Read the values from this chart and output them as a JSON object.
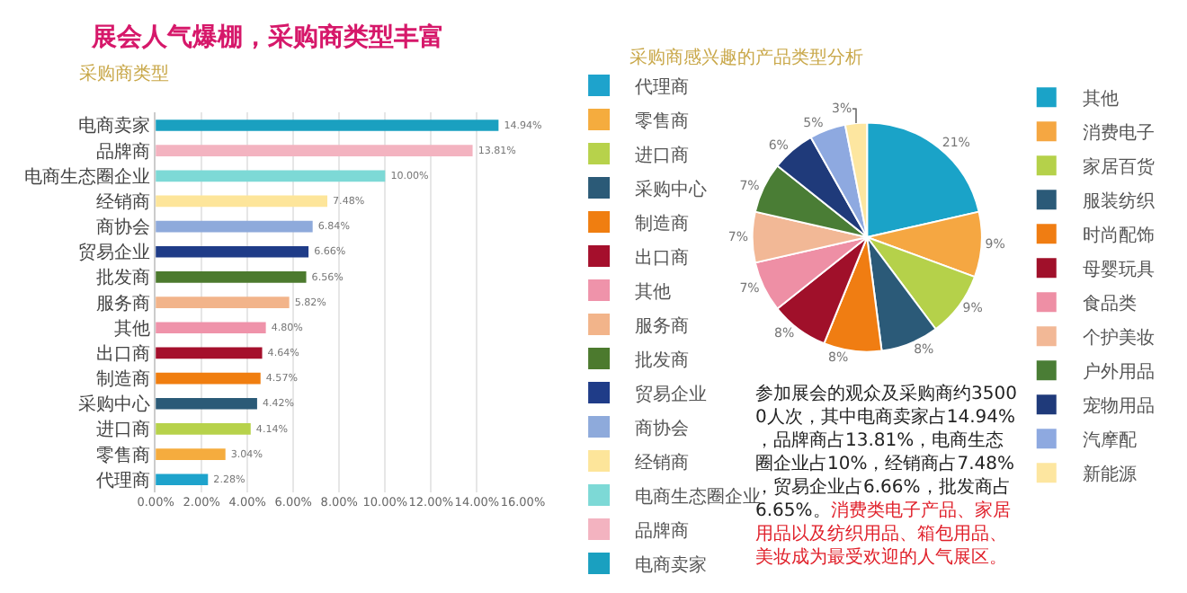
{
  "chart_data": [
    {
      "type": "bar",
      "orientation": "horizontal",
      "title": "采购商类型",
      "categories": [
        "电商卖家",
        "品牌商",
        "电商生态圈企业",
        "经销商",
        "商协会",
        "贸易企业",
        "批发商",
        "服务商",
        "其他",
        "出口商",
        "制造商",
        "采购中心",
        "进口商",
        "零售商",
        "代理商"
      ],
      "series": [
        {
          "name": "电商卖家",
          "color": "#1aa0c0",
          "values": [
            14.94,
            null,
            null,
            null,
            null,
            null,
            null,
            null,
            null,
            null,
            null,
            null,
            null,
            null,
            null
          ],
          "value_labels": [
            "14.94%",
            null,
            null,
            null,
            null,
            null,
            null,
            null,
            null,
            null,
            null,
            null,
            null,
            null,
            null
          ]
        },
        {
          "name": "品牌商",
          "color": "#f3b3c0",
          "values": [
            null,
            13.81,
            null,
            null,
            null,
            null,
            null,
            null,
            null,
            null,
            null,
            null,
            null,
            null,
            null
          ],
          "value_labels": [
            null,
            "13.81%",
            null,
            null,
            null,
            null,
            null,
            null,
            null,
            null,
            null,
            null,
            null,
            null,
            null
          ]
        },
        {
          "name": "电商生态圈企业",
          "color": "#7dd9d6",
          "values": [
            null,
            null,
            10.0,
            null,
            null,
            null,
            null,
            null,
            null,
            null,
            null,
            null,
            null,
            null,
            null
          ],
          "value_labels": [
            null,
            null,
            "10.00%",
            null,
            null,
            null,
            null,
            null,
            null,
            null,
            null,
            null,
            null,
            null,
            null
          ]
        },
        {
          "name": "经销商",
          "color": "#fde59a",
          "values": [
            null,
            null,
            null,
            7.48,
            null,
            null,
            null,
            null,
            null,
            null,
            null,
            null,
            null,
            null,
            null
          ],
          "value_labels": [
            null,
            null,
            null,
            "7.48%",
            null,
            null,
            null,
            null,
            null,
            null,
            null,
            null,
            null,
            null,
            null
          ]
        },
        {
          "name": "商协会",
          "color": "#8eaadb",
          "values": [
            null,
            null,
            null,
            null,
            6.84,
            null,
            null,
            null,
            null,
            null,
            null,
            null,
            null,
            null,
            null
          ],
          "value_labels": [
            null,
            null,
            null,
            null,
            "6.84%",
            null,
            null,
            null,
            null,
            null,
            null,
            null,
            null,
            null,
            null
          ]
        },
        {
          "name": "贸易企业",
          "color": "#1f3c88",
          "values": [
            null,
            null,
            null,
            null,
            null,
            6.66,
            null,
            null,
            null,
            null,
            null,
            null,
            null,
            null,
            null
          ],
          "value_labels": [
            null,
            null,
            null,
            null,
            null,
            "6.66%",
            null,
            null,
            null,
            null,
            null,
            null,
            null,
            null,
            null
          ]
        },
        {
          "name": "批发商",
          "color": "#4c7a2e",
          "values": [
            null,
            null,
            null,
            null,
            null,
            null,
            6.56,
            null,
            null,
            null,
            null,
            null,
            null,
            null,
            null
          ],
          "value_labels": [
            null,
            null,
            null,
            null,
            null,
            null,
            "6.56%",
            null,
            null,
            null,
            null,
            null,
            null,
            null,
            null
          ]
        },
        {
          "name": "服务商",
          "color": "#f2b48a",
          "values": [
            null,
            null,
            null,
            null,
            null,
            null,
            null,
            5.82,
            null,
            null,
            null,
            null,
            null,
            null,
            null
          ],
          "value_labels": [
            null,
            null,
            null,
            null,
            null,
            null,
            null,
            "5.82%",
            null,
            null,
            null,
            null,
            null,
            null,
            null
          ]
        },
        {
          "name": "其他",
          "color": "#ef93aa",
          "values": [
            null,
            null,
            null,
            null,
            null,
            null,
            null,
            null,
            4.8,
            null,
            null,
            null,
            null,
            null,
            null
          ],
          "value_labels": [
            null,
            null,
            null,
            null,
            null,
            null,
            null,
            null,
            "4.80%",
            null,
            null,
            null,
            null,
            null,
            null
          ]
        },
        {
          "name": "出口商",
          "color": "#a50f2c",
          "values": [
            null,
            null,
            null,
            null,
            null,
            null,
            null,
            null,
            null,
            4.64,
            null,
            null,
            null,
            null,
            null
          ],
          "value_labels": [
            null,
            null,
            null,
            null,
            null,
            null,
            null,
            null,
            null,
            "4.64%",
            null,
            null,
            null,
            null,
            null
          ]
        },
        {
          "name": "制造商",
          "color": "#f07e10",
          "values": [
            null,
            null,
            null,
            null,
            null,
            null,
            null,
            null,
            null,
            null,
            4.57,
            null,
            null,
            null,
            null
          ],
          "value_labels": [
            null,
            null,
            null,
            null,
            null,
            null,
            null,
            null,
            null,
            null,
            "4.57%",
            null,
            null,
            null,
            null
          ]
        },
        {
          "name": "采购中心",
          "color": "#2b5a77",
          "values": [
            null,
            null,
            null,
            null,
            null,
            null,
            null,
            null,
            null,
            null,
            null,
            4.42,
            null,
            null,
            null
          ],
          "value_labels": [
            null,
            null,
            null,
            null,
            null,
            null,
            null,
            null,
            null,
            null,
            null,
            "4.42%",
            null,
            null,
            null
          ]
        },
        {
          "name": "进口商",
          "color": "#b7d24b",
          "values": [
            null,
            null,
            null,
            null,
            null,
            null,
            null,
            null,
            null,
            null,
            null,
            null,
            4.14,
            null,
            null
          ],
          "value_labels": [
            null,
            null,
            null,
            null,
            null,
            null,
            null,
            null,
            null,
            null,
            null,
            null,
            "4.14%",
            null,
            null
          ]
        },
        {
          "name": "零售商",
          "color": "#f5ac3e",
          "values": [
            null,
            null,
            null,
            null,
            null,
            null,
            null,
            null,
            null,
            null,
            null,
            null,
            null,
            3.04,
            null
          ],
          "value_labels": [
            null,
            null,
            null,
            null,
            null,
            null,
            null,
            null,
            null,
            null,
            null,
            null,
            null,
            "3.04%",
            null
          ]
        },
        {
          "name": "代理商",
          "color": "#1ea3cc",
          "values": [
            null,
            null,
            null,
            null,
            null,
            null,
            null,
            null,
            null,
            null,
            null,
            null,
            null,
            null,
            2.28
          ],
          "value_labels": [
            null,
            null,
            null,
            null,
            null,
            null,
            null,
            null,
            null,
            null,
            null,
            null,
            null,
            null,
            "2.28%"
          ]
        }
      ],
      "xlim": [
        0,
        16
      ],
      "xticks": [
        {
          "value": 0,
          "label": "0.00%"
        },
        {
          "value": 2,
          "label": "2.00%"
        },
        {
          "value": 4,
          "label": "4.00%"
        },
        {
          "value": 6,
          "label": "6.00%"
        },
        {
          "value": 8,
          "label": "8.00%"
        },
        {
          "value": 10,
          "label": "10.00%"
        },
        {
          "value": 12,
          "label": "12.00%"
        },
        {
          "value": 14,
          "label": "14.00%"
        },
        {
          "value": 16,
          "label": "16.00%"
        }
      ],
      "grid": "x",
      "legend": "right"
    },
    {
      "type": "pie",
      "title": "采购商感兴趣的产品类型分析",
      "categories": [
        "其他",
        "消费电子",
        "家居百货",
        "服装纺织",
        "时尚配饰",
        "母婴玩具",
        "食品类",
        "个护美妆",
        "户外用品",
        "宠物用品",
        "汽摩配",
        "新能源"
      ],
      "values": [
        21,
        9,
        9,
        8,
        8,
        8,
        7,
        7,
        7,
        6,
        5,
        3
      ],
      "colors": [
        "#1aa3c8",
        "#f5a742",
        "#b5d14a",
        "#2b5a78",
        "#f07d12",
        "#a0102a",
        "#ee8fa5",
        "#f2b896",
        "#4a7d35",
        "#1f3a7a",
        "#8ea9e0",
        "#fde6a0"
      ],
      "value_labels": [
        "21%",
        "9%",
        "9%",
        "8%",
        "8%",
        "8%",
        "7%",
        "7%",
        "7%",
        "6%",
        "5%",
        "3%"
      ],
      "legend": "right"
    },
    {
      "type": "other",
      "title": "展会人气爆棚，采购商类型丰富",
      "annotations": [
        "参加展会的观众及采购商约35000人次，其中电商卖家占14.94%，品牌商占13.81%，电商生态圈企业占10%，经销商占7.48%，贸易企业占6.66%，批发商占6.65%。",
        "消费类电子产品、家居用品以及纺织用品、箱包用品、美妆成为最受欢迎的人气展区。"
      ]
    }
  ]
}
